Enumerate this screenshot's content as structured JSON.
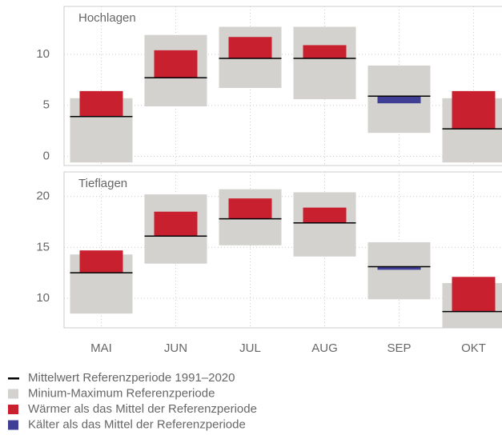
{
  "chart_data": [
    {
      "type": "rangebar",
      "title": "Hochlagen",
      "categories": [
        "MAI",
        "JUN",
        "JUL",
        "AUG",
        "SEP",
        "OKT"
      ],
      "min": [
        -0.6,
        4.9,
        6.7,
        5.6,
        2.3,
        -0.6
      ],
      "max": [
        5.7,
        11.9,
        12.7,
        12.7,
        8.9,
        5.7
      ],
      "mean": [
        3.9,
        7.7,
        9.6,
        9.6,
        5.9,
        2.7
      ],
      "observed": [
        6.4,
        10.4,
        11.7,
        10.9,
        5.2,
        6.4
      ],
      "ylim": [
        -0.9,
        14.7
      ],
      "yticks": [
        0,
        5,
        10
      ],
      "grid": true
    },
    {
      "type": "rangebar",
      "title": "Tieflagen",
      "categories": [
        "MAI",
        "JUN",
        "JUL",
        "AUG",
        "SEP",
        "OKT"
      ],
      "min": [
        8.5,
        13.4,
        15.2,
        14.1,
        9.9,
        7.1
      ],
      "max": [
        14.3,
        20.2,
        20.7,
        20.4,
        15.5,
        11.5
      ],
      "mean": [
        12.5,
        16.1,
        17.8,
        17.4,
        13.1,
        8.7
      ],
      "observed": [
        14.7,
        18.5,
        19.8,
        18.9,
        12.8,
        12.1
      ],
      "ylim": [
        7.1,
        22.4
      ],
      "yticks": [
        10,
        15,
        20
      ],
      "grid": true
    }
  ],
  "legend": [
    {
      "label": "Mittelwert Referenzperiode 1991–2020",
      "color": "#000000"
    },
    {
      "label": "Minium-Maximum Referenzperiode",
      "color": "#d4d2cf"
    },
    {
      "label": "Wärmer als das Mittel der Referenzperiode",
      "color": "#c8202f"
    },
    {
      "label": "Kälter als das Mittel der Referenzperiode",
      "color": "#3f3f95"
    }
  ]
}
